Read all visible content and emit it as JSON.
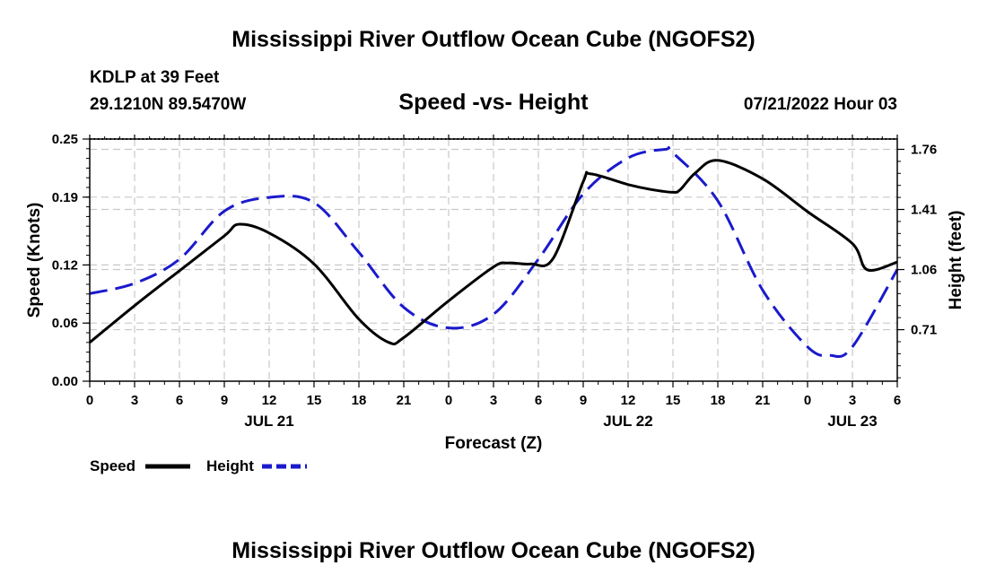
{
  "chart_data": {
    "type": "line",
    "title": "Mississippi River Outflow Ocean Cube (NGOFS2)",
    "subtitle": "Speed -vs- Height",
    "station": "KDLP at 39 Feet",
    "location": "29.1210N  89.5470W",
    "date": "07/21/2022 Hour 03",
    "footer_title": "Mississippi River Outflow Ocean Cube (NGOFS2)",
    "xlabel": "Forecast (Z)",
    "ylabel_left": "Speed (Knots)",
    "ylabel_right": "Height (feet)",
    "x_range": [
      0,
      54
    ],
    "x_tick_values": [
      0,
      3,
      6,
      9,
      12,
      15,
      18,
      21,
      24,
      27,
      30,
      33,
      36,
      39,
      42,
      45,
      48,
      51,
      54
    ],
    "x_tick_labels": [
      "0",
      "3",
      "6",
      "9",
      "12",
      "15",
      "18",
      "21",
      "0",
      "3",
      "6",
      "9",
      "12",
      "15",
      "18",
      "21",
      "0",
      "3",
      "6"
    ],
    "day_labels": [
      {
        "x": 12,
        "text": "JUL 21"
      },
      {
        "x": 36,
        "text": "JUL 22"
      },
      {
        "x": 51,
        "text": "JUL 23"
      }
    ],
    "y_left_range": [
      0,
      0.25
    ],
    "y_left_ticks": [
      0,
      0.06,
      0.12,
      0.19,
      0.25
    ],
    "y_left_tick_labels": [
      "0.00",
      "0.06",
      "0.12",
      "0.19",
      "0.25"
    ],
    "y_right_range": [
      0.41,
      1.82
    ],
    "y_right_ticks": [
      0.71,
      1.06,
      1.41,
      1.76
    ],
    "y_right_tick_labels": [
      "0.71",
      "1.06",
      "1.41",
      "1.76"
    ],
    "legend": [
      {
        "name": "Speed",
        "color": "#000000",
        "style": "solid"
      },
      {
        "name": "Height",
        "color": "#1a1acc",
        "style": "dashed"
      }
    ],
    "series": [
      {
        "name": "Speed",
        "axis": "left",
        "color": "#000000",
        "x": [
          0,
          3,
          6,
          9,
          10,
          12,
          15,
          18,
          20,
          21,
          24,
          27,
          28,
          29.5,
          31,
          33,
          33.5,
          36,
          37.5,
          39,
          39.5,
          40.5,
          42,
          45,
          48,
          51,
          52,
          54
        ],
        "y": [
          0.04,
          0.078,
          0.114,
          0.15,
          0.162,
          0.153,
          0.121,
          0.064,
          0.04,
          0.045,
          0.083,
          0.118,
          0.122,
          0.121,
          0.127,
          0.206,
          0.214,
          0.203,
          0.198,
          0.195,
          0.198,
          0.215,
          0.228,
          0.209,
          0.175,
          0.142,
          0.115,
          0.123
        ]
      },
      {
        "name": "Height",
        "axis": "right",
        "color": "#1a1acc",
        "x": [
          0,
          3,
          6,
          9,
          12,
          15,
          18,
          21,
          24,
          27,
          30,
          33,
          36,
          38.5,
          39,
          42,
          45,
          48,
          49.5,
          51,
          54
        ],
        "y": [
          0.92,
          0.98,
          1.12,
          1.4,
          1.48,
          1.45,
          1.16,
          0.84,
          0.72,
          0.8,
          1.12,
          1.5,
          1.71,
          1.76,
          1.74,
          1.46,
          0.94,
          0.61,
          0.56,
          0.61,
          1.06
        ]
      }
    ]
  }
}
